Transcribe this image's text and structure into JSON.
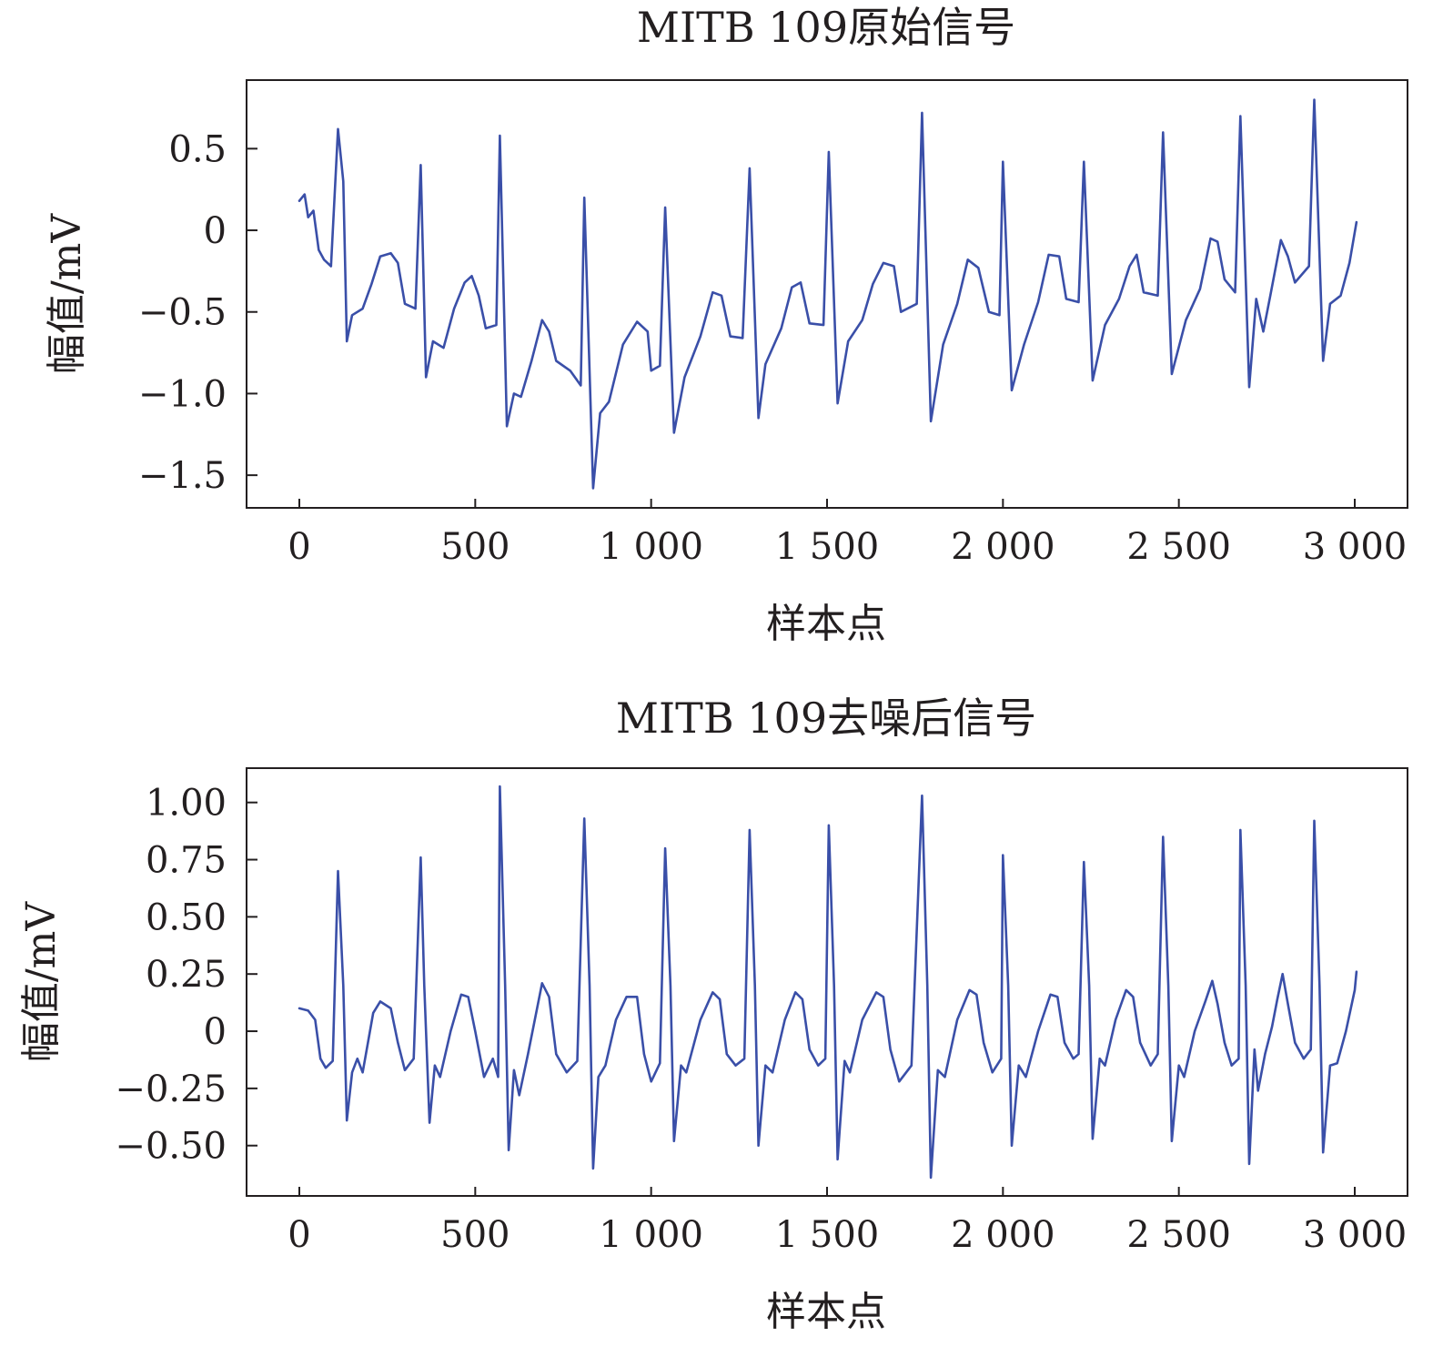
{
  "colors": {
    "series": "#3a4fa8",
    "axis": "#231f20"
  },
  "chart_data": [
    {
      "type": "line",
      "title": "MITB 109原始信号",
      "xlabel": "样本点",
      "ylabel": "幅值/mV",
      "xlim": [
        -150,
        3150
      ],
      "ylim": [
        -1.7,
        0.92
      ],
      "xticks": [
        0,
        500,
        1000,
        1500,
        2000,
        2500,
        3000
      ],
      "xtick_labels": [
        "0",
        "500",
        "1 000",
        "1 500",
        "2 000",
        "2 500",
        "3 000"
      ],
      "yticks": [
        0.5,
        0,
        -0.5,
        -1.0,
        -1.5
      ],
      "ytick_labels": [
        "0.5",
        "0",
        "−0.5",
        "−1.0",
        "−1.5"
      ],
      "grid": false,
      "baseline_points": [
        [
          0,
          0.18
        ],
        [
          15,
          0.22
        ],
        [
          25,
          0.08
        ],
        [
          40,
          0.12
        ],
        [
          55,
          -0.12
        ],
        [
          70,
          -0.18
        ],
        [
          90,
          -0.22
        ],
        [
          110,
          0.62
        ],
        [
          125,
          0.3
        ],
        [
          135,
          -0.68
        ],
        [
          150,
          -0.52
        ],
        [
          180,
          -0.48
        ],
        [
          205,
          -0.33
        ],
        [
          230,
          -0.16
        ],
        [
          260,
          -0.14
        ],
        [
          280,
          -0.2
        ],
        [
          300,
          -0.45
        ],
        [
          330,
          -0.48
        ],
        [
          345,
          0.4
        ],
        [
          360,
          -0.9
        ],
        [
          380,
          -0.68
        ],
        [
          410,
          -0.72
        ],
        [
          440,
          -0.48
        ],
        [
          470,
          -0.32
        ],
        [
          490,
          -0.28
        ],
        [
          510,
          -0.4
        ],
        [
          530,
          -0.6
        ],
        [
          560,
          -0.58
        ],
        [
          570,
          0.58
        ],
        [
          590,
          -1.2
        ],
        [
          610,
          -1.0
        ],
        [
          630,
          -1.02
        ],
        [
          660,
          -0.8
        ],
        [
          690,
          -0.55
        ],
        [
          710,
          -0.62
        ],
        [
          730,
          -0.8
        ],
        [
          770,
          -0.86
        ],
        [
          800,
          -0.95
        ],
        [
          810,
          0.2
        ],
        [
          835,
          -1.58
        ],
        [
          855,
          -1.12
        ],
        [
          880,
          -1.05
        ],
        [
          920,
          -0.7
        ],
        [
          960,
          -0.56
        ],
        [
          990,
          -0.62
        ],
        [
          1000,
          -0.86
        ],
        [
          1025,
          -0.83
        ],
        [
          1040,
          0.14
        ],
        [
          1065,
          -1.24
        ],
        [
          1095,
          -0.9
        ],
        [
          1140,
          -0.65
        ],
        [
          1175,
          -0.38
        ],
        [
          1200,
          -0.4
        ],
        [
          1225,
          -0.65
        ],
        [
          1260,
          -0.66
        ],
        [
          1280,
          0.38
        ],
        [
          1305,
          -1.15
        ],
        [
          1325,
          -0.82
        ],
        [
          1370,
          -0.6
        ],
        [
          1400,
          -0.35
        ],
        [
          1425,
          -0.32
        ],
        [
          1450,
          -0.57
        ],
        [
          1490,
          -0.58
        ],
        [
          1505,
          0.48
        ],
        [
          1530,
          -1.06
        ],
        [
          1560,
          -0.68
        ],
        [
          1600,
          -0.55
        ],
        [
          1630,
          -0.33
        ],
        [
          1660,
          -0.2
        ],
        [
          1690,
          -0.22
        ],
        [
          1710,
          -0.5
        ],
        [
          1755,
          -0.45
        ],
        [
          1770,
          0.72
        ],
        [
          1795,
          -1.17
        ],
        [
          1830,
          -0.7
        ],
        [
          1870,
          -0.45
        ],
        [
          1900,
          -0.18
        ],
        [
          1930,
          -0.23
        ],
        [
          1960,
          -0.5
        ],
        [
          1990,
          -0.52
        ],
        [
          2000,
          0.42
        ],
        [
          2025,
          -0.98
        ],
        [
          2060,
          -0.7
        ],
        [
          2100,
          -0.44
        ],
        [
          2130,
          -0.15
        ],
        [
          2160,
          -0.16
        ],
        [
          2180,
          -0.42
        ],
        [
          2215,
          -0.44
        ],
        [
          2230,
          0.42
        ],
        [
          2255,
          -0.92
        ],
        [
          2290,
          -0.58
        ],
        [
          2330,
          -0.42
        ],
        [
          2360,
          -0.22
        ],
        [
          2380,
          -0.15
        ],
        [
          2400,
          -0.38
        ],
        [
          2440,
          -0.4
        ],
        [
          2455,
          0.6
        ],
        [
          2480,
          -0.88
        ],
        [
          2520,
          -0.55
        ],
        [
          2560,
          -0.36
        ],
        [
          2590,
          -0.05
        ],
        [
          2610,
          -0.07
        ],
        [
          2630,
          -0.3
        ],
        [
          2660,
          -0.38
        ],
        [
          2675,
          0.7
        ],
        [
          2700,
          -0.96
        ],
        [
          2720,
          -0.42
        ],
        [
          2740,
          -0.62
        ],
        [
          2760,
          -0.4
        ],
        [
          2790,
          -0.06
        ],
        [
          2810,
          -0.16
        ],
        [
          2830,
          -0.32
        ],
        [
          2870,
          -0.22
        ],
        [
          2885,
          0.8
        ],
        [
          2910,
          -0.8
        ],
        [
          2930,
          -0.45
        ],
        [
          2960,
          -0.4
        ],
        [
          2985,
          -0.2
        ],
        [
          3005,
          0.05
        ]
      ]
    },
    {
      "type": "line",
      "title": "MITB 109去噪后信号",
      "xlabel": "样本点",
      "ylabel": "幅值/mV",
      "xlim": [
        -150,
        3150
      ],
      "ylim": [
        -0.72,
        1.15
      ],
      "xticks": [
        0,
        500,
        1000,
        1500,
        2000,
        2500,
        3000
      ],
      "xtick_labels": [
        "0",
        "500",
        "1 000",
        "1 500",
        "2 000",
        "2 500",
        "3 000"
      ],
      "yticks": [
        1.0,
        0.75,
        0.5,
        0.25,
        0,
        -0.25,
        -0.5
      ],
      "ytick_labels": [
        "1.00",
        "0.75",
        "0.50",
        "0.25",
        "0",
        "−0.25",
        "−0.50"
      ],
      "grid": false,
      "denoised_points": [
        [
          0,
          0.1
        ],
        [
          25,
          0.09
        ],
        [
          45,
          0.05
        ],
        [
          60,
          -0.12
        ],
        [
          75,
          -0.16
        ],
        [
          95,
          -0.13
        ],
        [
          110,
          0.7
        ],
        [
          125,
          0.2
        ],
        [
          135,
          -0.39
        ],
        [
          150,
          -0.18
        ],
        [
          165,
          -0.12
        ],
        [
          180,
          -0.18
        ],
        [
          210,
          0.08
        ],
        [
          230,
          0.13
        ],
        [
          260,
          0.1
        ],
        [
          280,
          -0.05
        ],
        [
          300,
          -0.17
        ],
        [
          325,
          -0.12
        ],
        [
          345,
          0.76
        ],
        [
          355,
          0.2
        ],
        [
          370,
          -0.4
        ],
        [
          385,
          -0.15
        ],
        [
          400,
          -0.2
        ],
        [
          430,
          0.0
        ],
        [
          460,
          0.16
        ],
        [
          480,
          0.15
        ],
        [
          500,
          0.0
        ],
        [
          525,
          -0.2
        ],
        [
          550,
          -0.12
        ],
        [
          565,
          -0.2
        ],
        [
          570,
          1.07
        ],
        [
          585,
          0.2
        ],
        [
          595,
          -0.52
        ],
        [
          610,
          -0.17
        ],
        [
          625,
          -0.28
        ],
        [
          650,
          -0.1
        ],
        [
          690,
          0.21
        ],
        [
          710,
          0.15
        ],
        [
          730,
          -0.1
        ],
        [
          760,
          -0.18
        ],
        [
          790,
          -0.13
        ],
        [
          810,
          0.93
        ],
        [
          825,
          0.2
        ],
        [
          835,
          -0.6
        ],
        [
          850,
          -0.2
        ],
        [
          870,
          -0.15
        ],
        [
          900,
          0.05
        ],
        [
          930,
          0.15
        ],
        [
          960,
          0.15
        ],
        [
          980,
          -0.1
        ],
        [
          1000,
          -0.22
        ],
        [
          1025,
          -0.14
        ],
        [
          1040,
          0.8
        ],
        [
          1055,
          0.2
        ],
        [
          1065,
          -0.48
        ],
        [
          1085,
          -0.15
        ],
        [
          1100,
          -0.18
        ],
        [
          1140,
          0.05
        ],
        [
          1175,
          0.17
        ],
        [
          1195,
          0.14
        ],
        [
          1215,
          -0.1
        ],
        [
          1240,
          -0.15
        ],
        [
          1265,
          -0.12
        ],
        [
          1280,
          0.88
        ],
        [
          1295,
          0.2
        ],
        [
          1305,
          -0.5
        ],
        [
          1325,
          -0.15
        ],
        [
          1345,
          -0.18
        ],
        [
          1380,
          0.05
        ],
        [
          1410,
          0.17
        ],
        [
          1430,
          0.14
        ],
        [
          1450,
          -0.08
        ],
        [
          1475,
          -0.15
        ],
        [
          1495,
          -0.12
        ],
        [
          1505,
          0.9
        ],
        [
          1520,
          0.2
        ],
        [
          1530,
          -0.56
        ],
        [
          1550,
          -0.13
        ],
        [
          1565,
          -0.18
        ],
        [
          1600,
          0.05
        ],
        [
          1640,
          0.17
        ],
        [
          1660,
          0.15
        ],
        [
          1680,
          -0.08
        ],
        [
          1705,
          -0.22
        ],
        [
          1740,
          -0.15
        ],
        [
          1770,
          1.03
        ],
        [
          1785,
          0.2
        ],
        [
          1795,
          -0.64
        ],
        [
          1815,
          -0.17
        ],
        [
          1835,
          -0.2
        ],
        [
          1870,
          0.05
        ],
        [
          1905,
          0.18
        ],
        [
          1925,
          0.16
        ],
        [
          1945,
          -0.05
        ],
        [
          1970,
          -0.18
        ],
        [
          1995,
          -0.12
        ],
        [
          2000,
          0.77
        ],
        [
          2015,
          0.2
        ],
        [
          2025,
          -0.5
        ],
        [
          2045,
          -0.15
        ],
        [
          2065,
          -0.2
        ],
        [
          2100,
          0.0
        ],
        [
          2135,
          0.16
        ],
        [
          2155,
          0.15
        ],
        [
          2175,
          -0.05
        ],
        [
          2200,
          -0.12
        ],
        [
          2215,
          -0.1
        ],
        [
          2230,
          0.74
        ],
        [
          2245,
          0.2
        ],
        [
          2255,
          -0.47
        ],
        [
          2275,
          -0.12
        ],
        [
          2290,
          -0.15
        ],
        [
          2320,
          0.05
        ],
        [
          2350,
          0.18
        ],
        [
          2370,
          0.15
        ],
        [
          2390,
          -0.05
        ],
        [
          2420,
          -0.15
        ],
        [
          2440,
          -0.1
        ],
        [
          2455,
          0.85
        ],
        [
          2470,
          0.2
        ],
        [
          2480,
          -0.48
        ],
        [
          2500,
          -0.15
        ],
        [
          2515,
          -0.2
        ],
        [
          2545,
          0.0
        ],
        [
          2575,
          0.13
        ],
        [
          2595,
          0.22
        ],
        [
          2610,
          0.12
        ],
        [
          2630,
          -0.05
        ],
        [
          2650,
          -0.15
        ],
        [
          2670,
          -0.12
        ],
        [
          2675,
          0.88
        ],
        [
          2690,
          0.2
        ],
        [
          2700,
          -0.58
        ],
        [
          2715,
          -0.08
        ],
        [
          2725,
          -0.26
        ],
        [
          2745,
          -0.1
        ],
        [
          2765,
          0.02
        ],
        [
          2780,
          0.14
        ],
        [
          2795,
          0.25
        ],
        [
          2810,
          0.12
        ],
        [
          2830,
          -0.05
        ],
        [
          2855,
          -0.12
        ],
        [
          2875,
          -0.08
        ],
        [
          2885,
          0.92
        ],
        [
          2900,
          0.2
        ],
        [
          2910,
          -0.53
        ],
        [
          2930,
          -0.15
        ],
        [
          2950,
          -0.14
        ],
        [
          2975,
          0.0
        ],
        [
          3000,
          0.18
        ],
        [
          3005,
          0.26
        ]
      ]
    }
  ]
}
